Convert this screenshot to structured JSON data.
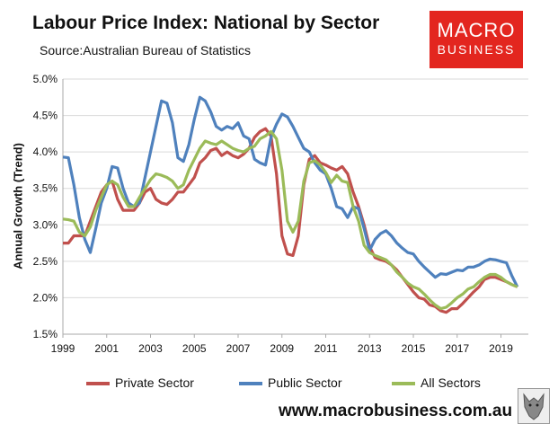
{
  "header": {
    "title": "Labour Price Index: National by Sector",
    "source": "Source:Australian Bureau of Statistics"
  },
  "logo": {
    "line1": "MACRO",
    "line2": "BUSINESS",
    "color": "#e3261f"
  },
  "footer": {
    "website": "www.macrobusiness.com.au"
  },
  "chart_data": {
    "type": "line",
    "title": "Labour Price Index: National by Sector",
    "ylabel": "Annual Growth (Trend)",
    "xlabel": "",
    "ylim": [
      1.5,
      5.0
    ],
    "yticks": [
      "1.5%",
      "2.0%",
      "2.5%",
      "3.0%",
      "3.5%",
      "4.0%",
      "4.5%",
      "5.0%"
    ],
    "xlim": [
      1999,
      2020.25
    ],
    "xticks": [
      "1999",
      "2001",
      "2003",
      "2005",
      "2007",
      "2009",
      "2011",
      "2013",
      "2015",
      "2017",
      "2019"
    ],
    "grid": "horizontal",
    "legend": "bottom",
    "x_start": 1999,
    "x_step": 0.25,
    "series": [
      {
        "name": "Private Sector",
        "color": "#c0504d",
        "values": [
          2.75,
          2.75,
          2.85,
          2.85,
          2.85,
          3.05,
          3.25,
          3.45,
          3.55,
          3.6,
          3.35,
          3.2,
          3.2,
          3.2,
          3.3,
          3.45,
          3.5,
          3.35,
          3.3,
          3.28,
          3.35,
          3.45,
          3.45,
          3.55,
          3.65,
          3.85,
          3.92,
          4.02,
          4.05,
          3.95,
          4.0,
          3.95,
          3.92,
          3.97,
          4.05,
          4.2,
          4.28,
          4.32,
          4.22,
          3.7,
          2.85,
          2.6,
          2.58,
          2.85,
          3.55,
          3.9,
          3.95,
          3.85,
          3.82,
          3.78,
          3.75,
          3.8,
          3.7,
          3.45,
          3.25,
          3.0,
          2.7,
          2.55,
          2.52,
          2.5,
          2.45,
          2.38,
          2.28,
          2.18,
          2.08,
          2.0,
          1.98,
          1.9,
          1.88,
          1.82,
          1.8,
          1.85,
          1.85,
          1.92,
          2.0,
          2.08,
          2.15,
          2.25,
          2.28,
          2.28,
          2.25,
          2.22,
          2.18,
          2.15
        ]
      },
      {
        "name": "Public Sector",
        "color": "#4f81bd",
        "values": [
          3.93,
          3.92,
          3.55,
          3.1,
          2.8,
          2.62,
          2.95,
          3.3,
          3.5,
          3.8,
          3.78,
          3.5,
          3.3,
          3.25,
          3.3,
          3.65,
          4.0,
          4.35,
          4.7,
          4.67,
          4.4,
          3.92,
          3.87,
          4.1,
          4.45,
          4.75,
          4.7,
          4.55,
          4.35,
          4.3,
          4.35,
          4.32,
          4.4,
          4.22,
          4.18,
          3.9,
          3.85,
          3.82,
          4.2,
          4.38,
          4.52,
          4.48,
          4.35,
          4.2,
          4.05,
          4.0,
          3.85,
          3.75,
          3.7,
          3.5,
          3.25,
          3.22,
          3.1,
          3.25,
          3.22,
          2.95,
          2.65,
          2.8,
          2.88,
          2.92,
          2.85,
          2.75,
          2.68,
          2.62,
          2.6,
          2.5,
          2.42,
          2.35,
          2.28,
          2.33,
          2.32,
          2.35,
          2.38,
          2.37,
          2.42,
          2.42,
          2.45,
          2.5,
          2.53,
          2.52,
          2.5,
          2.48,
          2.3,
          2.15
        ]
      },
      {
        "name": "All Sectors",
        "color": "#9bbb59",
        "values": [
          3.08,
          3.07,
          3.05,
          2.9,
          2.85,
          2.97,
          3.2,
          3.38,
          3.55,
          3.6,
          3.55,
          3.38,
          3.25,
          3.25,
          3.38,
          3.5,
          3.62,
          3.7,
          3.68,
          3.65,
          3.6,
          3.5,
          3.55,
          3.75,
          3.9,
          4.05,
          4.15,
          4.12,
          4.1,
          4.15,
          4.1,
          4.05,
          4.02,
          4.0,
          4.05,
          4.08,
          4.18,
          4.22,
          4.28,
          4.18,
          3.75,
          3.05,
          2.9,
          3.05,
          3.6,
          3.85,
          3.88,
          3.82,
          3.72,
          3.58,
          3.68,
          3.6,
          3.58,
          3.25,
          3.05,
          2.72,
          2.62,
          2.58,
          2.55,
          2.52,
          2.45,
          2.35,
          2.28,
          2.2,
          2.15,
          2.12,
          2.05,
          1.97,
          1.9,
          1.85,
          1.87,
          1.93,
          2.0,
          2.05,
          2.12,
          2.15,
          2.22,
          2.28,
          2.32,
          2.32,
          2.28,
          2.22,
          2.18,
          2.15
        ]
      }
    ]
  }
}
